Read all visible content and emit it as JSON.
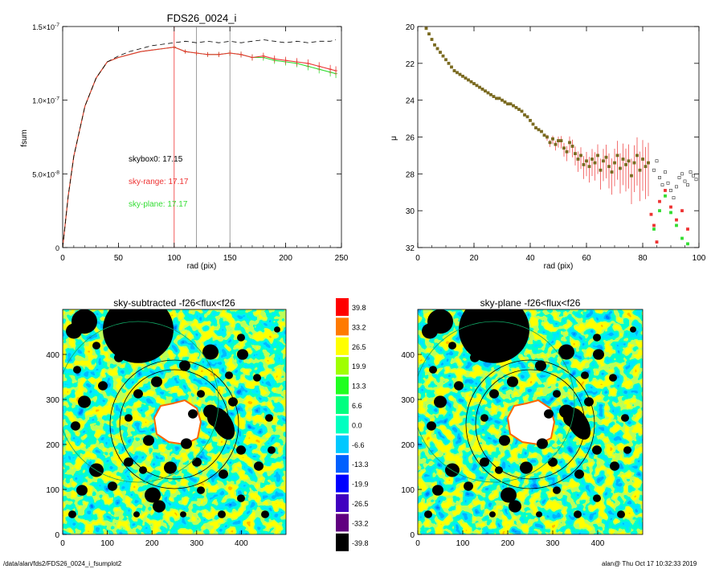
{
  "chart_data": [
    {
      "type": "line",
      "title": "FDS26_0024_i",
      "xlabel": "rad (pix)",
      "ylabel": "fsum",
      "xlim": [
        0,
        250
      ],
      "ylim": [
        0,
        1.5e-07
      ],
      "x_ticks": [
        "0",
        "50",
        "100",
        "150",
        "200",
        "250"
      ],
      "y_ticks": [
        "0",
        "5.0×10-8",
        "1.0×10-7",
        "1.5×10-7"
      ],
      "series": [
        {
          "name": "skybox0: 17.15",
          "color": "#000000",
          "style": "dashed",
          "x": [
            0,
            5,
            10,
            20,
            30,
            40,
            50,
            60,
            70,
            80,
            90,
            100,
            110,
            120,
            130,
            140,
            150,
            160,
            170,
            180,
            190,
            200,
            210,
            220,
            230,
            240,
            245
          ],
          "y": [
            0,
            3.5e-08,
            6.2e-08,
            9.6e-08,
            1.15e-07,
            1.26e-07,
            1.3e-07,
            1.33e-07,
            1.35e-07,
            1.37e-07,
            1.38e-07,
            1.39e-07,
            1.4e-07,
            1.39e-07,
            1.4e-07,
            1.39e-07,
            1.4e-07,
            1.39e-07,
            1.4e-07,
            1.41e-07,
            1.4e-07,
            1.39e-07,
            1.4e-07,
            1.39e-07,
            1.4e-07,
            1.4e-07,
            1.41e-07
          ]
        },
        {
          "name": "sky-range: 17.17",
          "color": "#ee3333",
          "style": "solid",
          "x": [
            0,
            5,
            10,
            20,
            30,
            40,
            50,
            60,
            70,
            80,
            90,
            100,
            110,
            120,
            130,
            140,
            150,
            160,
            170,
            180,
            190,
            200,
            210,
            220,
            230,
            240,
            245
          ],
          "y": [
            0,
            3.5e-08,
            6.2e-08,
            9.6e-08,
            1.15e-07,
            1.26e-07,
            1.29e-07,
            1.31e-07,
            1.33e-07,
            1.34e-07,
            1.35e-07,
            1.36e-07,
            1.33e-07,
            1.32e-07,
            1.31e-07,
            1.31e-07,
            1.32e-07,
            1.31e-07,
            1.29e-07,
            1.3e-07,
            1.28e-07,
            1.27e-07,
            1.26e-07,
            1.25e-07,
            1.23e-07,
            1.21e-07,
            1.2e-07
          ]
        },
        {
          "name": "sky-plane: 17.17",
          "color": "#33dd33",
          "style": "solid",
          "x": [
            0,
            5,
            10,
            20,
            30,
            40,
            50,
            60,
            70,
            80,
            90,
            100,
            110,
            120,
            130,
            140,
            150,
            160,
            170,
            180,
            190,
            200,
            210,
            220,
            230,
            240,
            245
          ],
          "y": [
            0,
            3.5e-08,
            6.2e-08,
            9.6e-08,
            1.15e-07,
            1.26e-07,
            1.29e-07,
            1.31e-07,
            1.33e-07,
            1.34e-07,
            1.35e-07,
            1.36e-07,
            1.33e-07,
            1.32e-07,
            1.31e-07,
            1.31e-07,
            1.32e-07,
            1.31e-07,
            1.29e-07,
            1.29e-07,
            1.27e-07,
            1.26e-07,
            1.25e-07,
            1.23e-07,
            1.21e-07,
            1.19e-07,
            1.18e-07
          ]
        }
      ],
      "vlines": [
        {
          "x": 100,
          "color": "#ee3333"
        },
        {
          "x": 120,
          "color": "#888888"
        },
        {
          "x": 150,
          "color": "#888888"
        }
      ],
      "annotations": [
        {
          "text": "skybox0: 17.15",
          "color": "#000000"
        },
        {
          "text": "sky-range: 17.17",
          "color": "#ee3333"
        },
        {
          "text": "sky-plane: 17.17",
          "color": "#33dd33"
        }
      ]
    },
    {
      "type": "scatter",
      "title": "",
      "xlabel": "rad (pix)",
      "ylabel": "μ",
      "xlim": [
        0,
        100
      ],
      "ylim": [
        32,
        20
      ],
      "y_inverted": true,
      "x_ticks": [
        "0",
        "20",
        "40",
        "60",
        "80",
        "100"
      ],
      "y_ticks": [
        "20",
        "22",
        "24",
        "26",
        "28",
        "30",
        "32"
      ],
      "series": [
        {
          "name": "",
          "color": "#7a6a20",
          "x": [
            3,
            4,
            5,
            6,
            7,
            8,
            9,
            10,
            11,
            12,
            13,
            14,
            15,
            16,
            17,
            18,
            19,
            20,
            21,
            22,
            23,
            24,
            25,
            26,
            27,
            28,
            29,
            30,
            31,
            32,
            33,
            34,
            35,
            36,
            37,
            38,
            39,
            40,
            41,
            42,
            43,
            44,
            45,
            46,
            47,
            48,
            49,
            50,
            51,
            52,
            53,
            54,
            55,
            56,
            57,
            58,
            59,
            60,
            61,
            62,
            63,
            64,
            65,
            66,
            67,
            68,
            69,
            70,
            71,
            72,
            73,
            74,
            75,
            76,
            77,
            78,
            79,
            80,
            81,
            82
          ],
          "y": [
            20.1,
            20.4,
            20.7,
            21.0,
            21.2,
            21.4,
            21.6,
            21.8,
            22.0,
            22.2,
            22.4,
            22.5,
            22.6,
            22.7,
            22.8,
            22.9,
            23.0,
            23.1,
            23.2,
            23.3,
            23.4,
            23.5,
            23.6,
            23.7,
            23.8,
            23.9,
            23.9,
            24.0,
            24.1,
            24.2,
            24.2,
            24.3,
            24.4,
            24.5,
            24.6,
            24.8,
            24.9,
            25.1,
            25.3,
            25.5,
            25.6,
            25.7,
            25.9,
            26.0,
            26.3,
            26.1,
            26.4,
            26.2,
            26.2,
            26.6,
            26.8,
            26.3,
            26.5,
            26.9,
            27.2,
            27.0,
            27.5,
            27.3,
            27.6,
            27.2,
            27.4,
            27.0,
            27.8,
            27.3,
            27.1,
            27.6,
            27.9,
            27.4,
            27.0,
            27.7,
            27.2,
            27.5,
            27.3,
            28.1,
            27.4,
            27.0,
            27.8,
            27.2,
            27.6,
            27.4
          ]
        },
        {
          "name": "",
          "color": "#333333",
          "x": [
            84,
            85,
            86,
            87,
            88,
            89,
            90,
            91,
            92,
            93,
            94,
            95,
            96,
            97,
            98,
            99
          ],
          "y": [
            27.8,
            27.3,
            28.2,
            28.6,
            27.9,
            28.5,
            28.9,
            29.3,
            28.7,
            28.2,
            28.0,
            28.4,
            28.6,
            27.9,
            28.1,
            28.3
          ]
        },
        {
          "name": "",
          "color": "#ee3333",
          "x": [
            83,
            84,
            85,
            86,
            88,
            90,
            92,
            94,
            96
          ],
          "y": [
            30.2,
            30.8,
            31.7,
            29.5,
            28.9,
            29.8,
            30.5,
            30.0,
            31.0
          ]
        },
        {
          "name": "",
          "color": "#33dd33",
          "x": [
            84,
            86,
            88,
            90,
            92,
            94,
            96
          ],
          "y": [
            31.0,
            30.0,
            29.2,
            30.1,
            30.8,
            31.5,
            31.8
          ]
        }
      ]
    },
    {
      "type": "heatmap",
      "title": "sky-subtracted -f26<flux<f26",
      "xlim": [
        0,
        500
      ],
      "ylim": [
        0,
        500
      ],
      "x_ticks": [
        "0",
        "100",
        "200",
        "300",
        "400"
      ],
      "y_ticks": [
        "0",
        "100",
        "200",
        "300",
        "400"
      ]
    },
    {
      "type": "heatmap",
      "title": "sky-plane -f26<flux<f26",
      "xlim": [
        0,
        500
      ],
      "ylim": [
        0,
        500
      ],
      "x_ticks": [
        "0",
        "100",
        "200",
        "300",
        "400"
      ],
      "y_ticks": [
        "0",
        "100",
        "200",
        "300",
        "400"
      ]
    }
  ],
  "colorbar": {
    "labels": [
      "39.8",
      "33.2",
      "26.5",
      "19.9",
      "13.3",
      "6.6",
      "0.0",
      "-6.6",
      "-13.3",
      "-19.9",
      "-26.5",
      "-33.2",
      "-39.8"
    ],
    "colors": [
      "#ff0000",
      "#ff7a00",
      "#ffff00",
      "#a0ff00",
      "#20ff20",
      "#00ff80",
      "#00ffc0",
      "#00c8ff",
      "#0060ff",
      "#0000ff",
      "#4000c0",
      "#600080",
      "#000000"
    ]
  },
  "footer": {
    "left": "/data/alan/fds2/FDS26_0024_i_fsumplot2",
    "right": "alan@  Thu Oct 17 10:32:33 2019"
  }
}
